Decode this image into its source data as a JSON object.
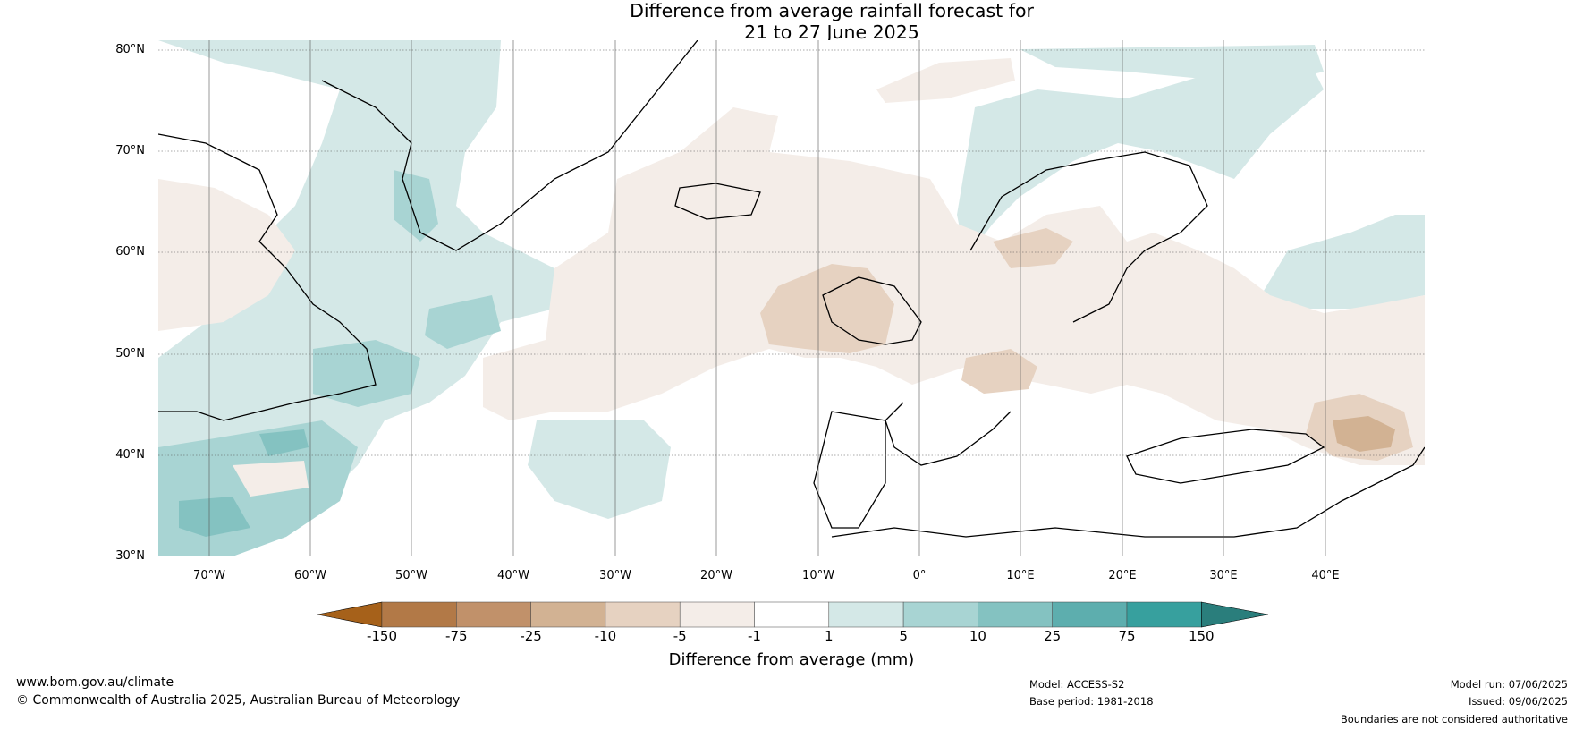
{
  "title_line1": "Difference from average rainfall forecast for",
  "title_line2": "21 to 27 June 2025",
  "lat_labels": [
    "80°N",
    "70°N",
    "60°N",
    "50°N",
    "40°N",
    "30°N"
  ],
  "lon_labels": [
    "70°W",
    "60°W",
    "50°W",
    "40°W",
    "30°W",
    "20°W",
    "10°W",
    "0°",
    "10°E",
    "20°E",
    "30°E",
    "40°E"
  ],
  "colorbar": {
    "title": "Difference from average (mm)",
    "ticks": [
      "-150",
      "-75",
      "-25",
      "-10",
      "-5",
      "-1",
      "1",
      "5",
      "10",
      "25",
      "75",
      "150"
    ],
    "colors": [
      "#a6611a",
      "#b27947",
      "#c1916a",
      "#d2b293",
      "#e6d2c1",
      "#f4ede8",
      "#ffffff",
      "#d4e8e7",
      "#a8d4d3",
      "#84c2c1",
      "#5daeae",
      "#37a09e",
      "#2a7e7c"
    ]
  },
  "footer": {
    "website": "www.bom.gov.au/climate",
    "copyright": "© Commonwealth of Australia 2025, Australian Bureau of Meteorology",
    "model": "Model: ACCESS-S2",
    "base_period": "Base period: 1981-2018",
    "model_run": "Model run: 07/06/2025",
    "issued": "Issued: 09/06/2025",
    "disclaimer": "Boundaries are not considered authoritative"
  }
}
